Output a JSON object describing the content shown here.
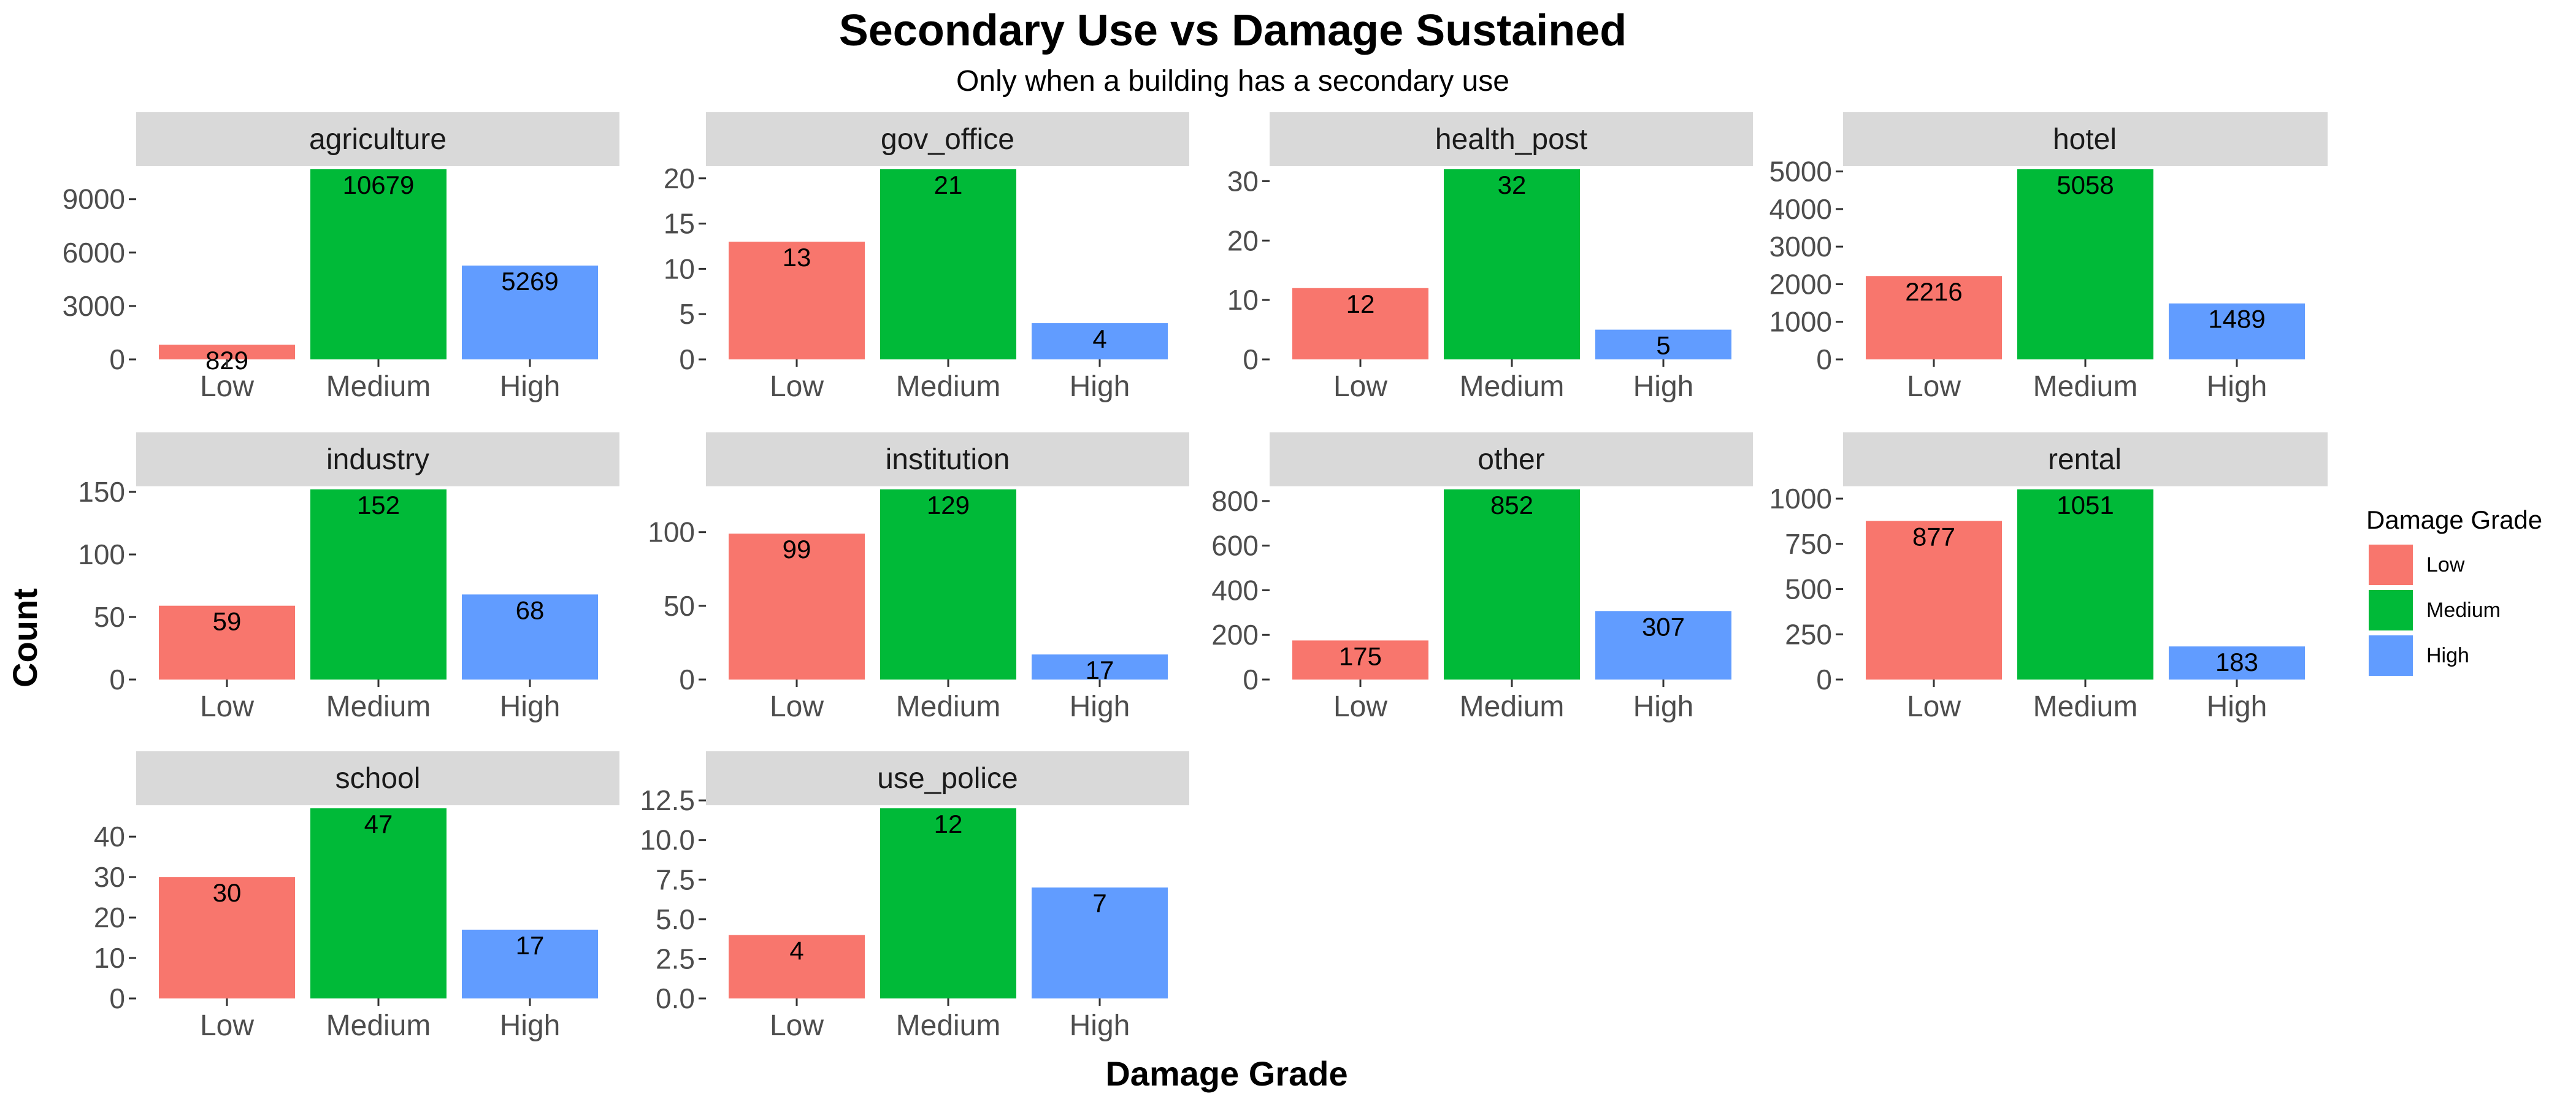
{
  "chart_data": {
    "type": "bar",
    "title": "Secondary Use vs Damage Sustained",
    "subtitle": "Only when a building has a secondary use",
    "xlabel": "Damage Grade",
    "ylabel": "Count",
    "categories": [
      "Low",
      "Medium",
      "High"
    ],
    "colors": {
      "Low": "#F8766D",
      "Medium": "#00BA38",
      "High": "#619CFF"
    },
    "strip_color": "#D9D9D9",
    "legend": {
      "title": "Damage Grade",
      "entries": [
        "Low",
        "Medium",
        "High"
      ],
      "position": "right"
    },
    "facets": [
      {
        "name": "agriculture",
        "values": [
          829,
          10679,
          5269
        ],
        "yticks": [
          0,
          3000,
          6000,
          9000
        ],
        "ytick_labels": [
          "0",
          "3000",
          "6000",
          "9000"
        ]
      },
      {
        "name": "gov_office",
        "values": [
          13,
          21,
          4
        ],
        "yticks": [
          0,
          5,
          10,
          15,
          20
        ],
        "ytick_labels": [
          "0",
          "5",
          "10",
          "15",
          "20"
        ]
      },
      {
        "name": "health_post",
        "values": [
          12,
          32,
          5
        ],
        "yticks": [
          0,
          10,
          20,
          30
        ],
        "ytick_labels": [
          "0",
          "10",
          "20",
          "30"
        ]
      },
      {
        "name": "hotel",
        "values": [
          2216,
          5058,
          1489
        ],
        "yticks": [
          0,
          1000,
          2000,
          3000,
          4000,
          5000
        ],
        "ytick_labels": [
          "0",
          "1000",
          "2000",
          "3000",
          "4000",
          "5000"
        ]
      },
      {
        "name": "industry",
        "values": [
          59,
          152,
          68
        ],
        "yticks": [
          0,
          50,
          100,
          150
        ],
        "ytick_labels": [
          "0",
          "50",
          "100",
          "150"
        ]
      },
      {
        "name": "institution",
        "values": [
          99,
          129,
          17
        ],
        "yticks": [
          0,
          50,
          100
        ],
        "ytick_labels": [
          "0",
          "50",
          "100"
        ]
      },
      {
        "name": "other",
        "values": [
          175,
          852,
          307
        ],
        "yticks": [
          0,
          200,
          400,
          600,
          800
        ],
        "ytick_labels": [
          "0",
          "200",
          "400",
          "600",
          "800"
        ]
      },
      {
        "name": "rental",
        "values": [
          877,
          1051,
          183
        ],
        "yticks": [
          0,
          250,
          500,
          750,
          1000
        ],
        "ytick_labels": [
          "0",
          "250",
          "500",
          "750",
          "1000"
        ]
      },
      {
        "name": "school",
        "values": [
          30,
          47,
          17
        ],
        "yticks": [
          0,
          10,
          20,
          30,
          40
        ],
        "ytick_labels": [
          "0",
          "10",
          "20",
          "30",
          "40"
        ]
      },
      {
        "name": "use_police",
        "values": [
          4,
          12,
          7
        ],
        "yticks": [
          0,
          2.5,
          5,
          7.5,
          10,
          12.5
        ],
        "ytick_labels": [
          "0.0",
          "2.5",
          "5.0",
          "7.5",
          "10.0",
          "12.5"
        ]
      }
    ]
  }
}
